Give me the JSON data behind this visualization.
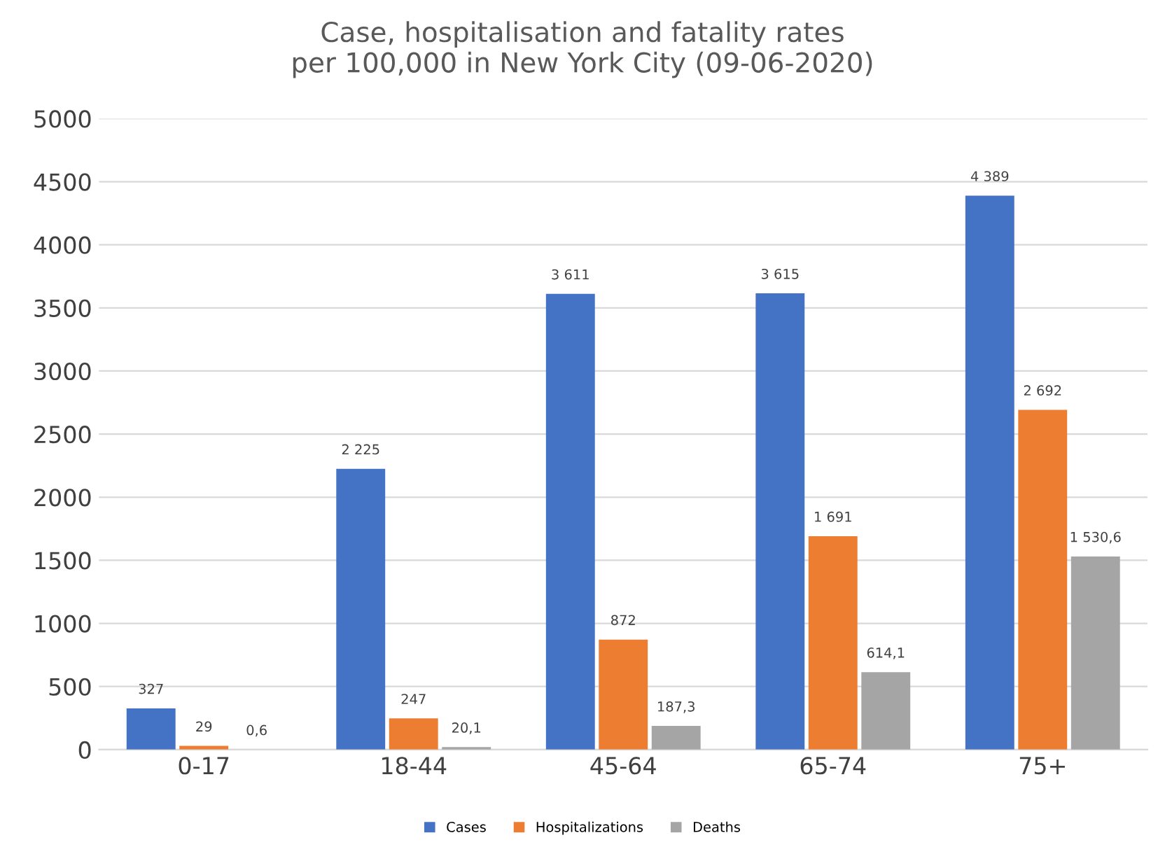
{
  "chart_data": {
    "type": "bar",
    "title": "Case, hospitalisation and fatality rates\nper 100,000 in New York City (09-06-2020)",
    "categories": [
      "0-17",
      "18-44",
      "45-64",
      "65-74",
      "75+"
    ],
    "series": [
      {
        "name": "Cases",
        "color": "#4472c4",
        "values": [
          327,
          2225,
          3611,
          3615,
          4389
        ],
        "value_labels": [
          "327",
          "2 225",
          "3 611",
          "3 615",
          "4 389"
        ]
      },
      {
        "name": "Hospitalizations",
        "color": "#ed7d31",
        "values": [
          29,
          247,
          872,
          1691,
          2692
        ],
        "value_labels": [
          "29",
          "247",
          "872",
          "1 691",
          "2 692"
        ]
      },
      {
        "name": "Deaths",
        "color": "#a5a5a5",
        "values": [
          0.6,
          20.1,
          187.3,
          614.1,
          1530.6
        ],
        "value_labels": [
          "0,6",
          "20,1",
          "187,3",
          "614,1",
          "1 530,6"
        ]
      }
    ],
    "ylim": [
      0,
      5000
    ],
    "yticks": [
      0,
      500,
      1000,
      1500,
      2000,
      2500,
      3000,
      3500,
      4000,
      4500,
      5000
    ],
    "grid": "y",
    "legend": "bottom"
  }
}
